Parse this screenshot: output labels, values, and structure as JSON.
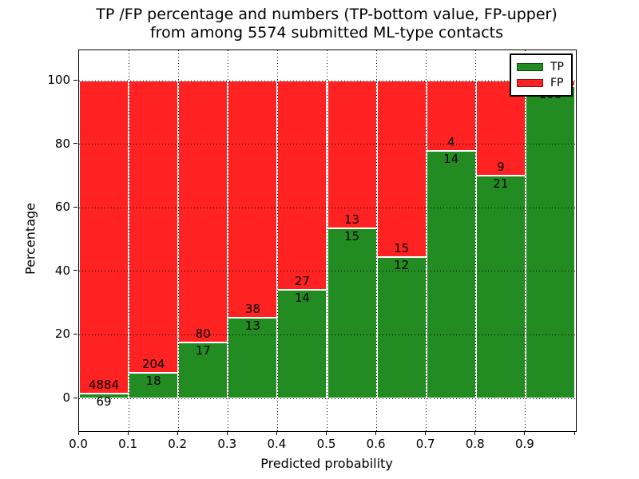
{
  "title": {
    "line1": "TP /FP percentage and numbers (TP-bottom value, FP-upper)",
    "line2": "from among 5574 submitted ML-type contacts"
  },
  "axes": {
    "x_label": "Predicted probability",
    "y_label": "Percentage",
    "x_tick_labels": [
      "0.0",
      "0.1",
      "0.2",
      "0.3",
      "0.4",
      "0.5",
      "0.6",
      "0.7",
      "0.8",
      "0.9"
    ],
    "y_tick_labels": [
      "0",
      "20",
      "40",
      "60",
      "80",
      "100"
    ],
    "y_tick_values": [
      0,
      20,
      40,
      60,
      80,
      100
    ]
  },
  "legend": {
    "items": [
      {
        "label": "TP",
        "color": "#228b22"
      },
      {
        "label": "FP",
        "color": "#ff2222"
      }
    ]
  },
  "colors": {
    "tp_green": "#228b22",
    "fp_red": "#ff2222",
    "bar_edge": "#ffffff",
    "grid": "#000000"
  },
  "chart_data": {
    "type": "bar",
    "stacked": true,
    "normalized_to_percent": true,
    "title": "TP /FP percentage and numbers (TP-bottom value, FP-upper) from among 5574 submitted ML-type contacts",
    "xlabel": "Predicted probability",
    "ylabel": "Percentage",
    "xlim": [
      0.0,
      1.0
    ],
    "ylim": [
      -10.3,
      109.6
    ],
    "grid": "dotted both axes, at x=0.1..0.9 and y=0,20,40,60,80,100",
    "legend_position": "upper right",
    "x_bin_edges": [
      0.0,
      0.1,
      0.2,
      0.3,
      0.4,
      0.5,
      0.6,
      0.7,
      0.8,
      0.9,
      1.0
    ],
    "categories": [
      "0.0-0.1",
      "0.1-0.2",
      "0.2-0.3",
      "0.3-0.4",
      "0.4-0.5",
      "0.5-0.6",
      "0.6-0.7",
      "0.7-0.8",
      "0.8-0.9",
      "0.9-1.0"
    ],
    "series": [
      {
        "name": "TP",
        "counts": [
          69,
          18,
          17,
          13,
          14,
          15,
          12,
          14,
          21,
          106
        ],
        "percent": [
          1.4,
          8.1,
          17.5,
          25.5,
          34.1,
          53.6,
          44.4,
          77.8,
          70.0,
          98.2
        ],
        "count_labels": [
          "69",
          "18",
          "17",
          "13",
          "14",
          "15",
          "12",
          "14",
          "21",
          "106"
        ]
      },
      {
        "name": "FP",
        "counts": [
          4884,
          204,
          80,
          38,
          27,
          13,
          15,
          4,
          9,
          null
        ],
        "percent": [
          98.6,
          91.9,
          82.5,
          74.5,
          65.9,
          46.4,
          55.6,
          22.2,
          30.0,
          1.8
        ],
        "count_labels": [
          "4884",
          "204",
          "80",
          "38",
          "27",
          "13",
          "15",
          "4",
          "9",
          ""
        ]
      }
    ]
  }
}
